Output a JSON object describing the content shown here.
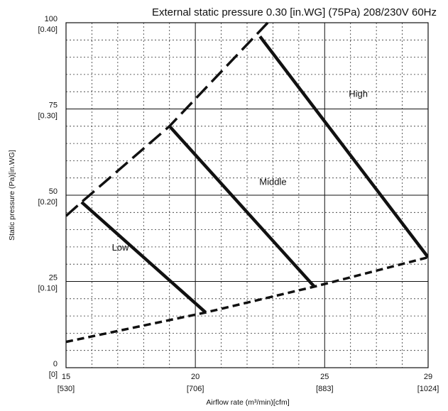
{
  "chart_data": {
    "type": "line",
    "title": "External static pressure 0.30 [in.WG] (75Pa)  208/230V 60Hz",
    "xlabel": "Airflow rate (m³/min)[cfm]",
    "ylabel": "Static pressure (Pa)[in.WG]",
    "xlim": [
      15,
      29
    ],
    "ylim": [
      0,
      100
    ],
    "x_ticks": [
      {
        "value": 15,
        "label": "15",
        "sublabel": "[530]"
      },
      {
        "value": 20,
        "label": "20",
        "sublabel": "[706]"
      },
      {
        "value": 25,
        "label": "25",
        "sublabel": "[883]"
      },
      {
        "value": 29,
        "label": "29",
        "sublabel": "[1024]"
      }
    ],
    "y_ticks": [
      {
        "value": 0,
        "label": "0",
        "sublabel": "[0]"
      },
      {
        "value": 25,
        "label": "25",
        "sublabel": "[0.10]"
      },
      {
        "value": 50,
        "label": "50",
        "sublabel": "[0.20]"
      },
      {
        "value": 75,
        "label": "75",
        "sublabel": "[0.30]"
      },
      {
        "value": 100,
        "label": "100",
        "sublabel": "[0.40]"
      }
    ],
    "grid": {
      "major_x": [
        20,
        25
      ],
      "major_y": [
        25,
        50,
        75
      ],
      "minor_x_step": 1,
      "minor_y_step": 5
    },
    "series": [
      {
        "name": "High",
        "style": "solid",
        "x": [
          22.5,
          29
        ],
        "y": [
          96,
          32
        ]
      },
      {
        "name": "Middle",
        "style": "solid",
        "x": [
          19,
          24.6
        ],
        "y": [
          70,
          23.5
        ]
      },
      {
        "name": "Low",
        "style": "solid",
        "x": [
          15.6,
          20.4
        ],
        "y": [
          48,
          16
        ]
      },
      {
        "name": "",
        "style": "long-dash",
        "x": [
          15,
          15.6,
          19,
          22.8
        ],
        "y": [
          44,
          48,
          70,
          100
        ]
      },
      {
        "name": "",
        "style": "short-dash",
        "x": [
          15,
          20.4,
          24.6,
          29
        ],
        "y": [
          7.5,
          16,
          23.5,
          32
        ]
      }
    ],
    "curve_labels": [
      {
        "text": "High",
        "x": 26.3,
        "y": 78.5
      },
      {
        "text": "Middle",
        "x": 23.0,
        "y": 53
      },
      {
        "text": "Low",
        "x": 17.1,
        "y": 34
      }
    ]
  }
}
